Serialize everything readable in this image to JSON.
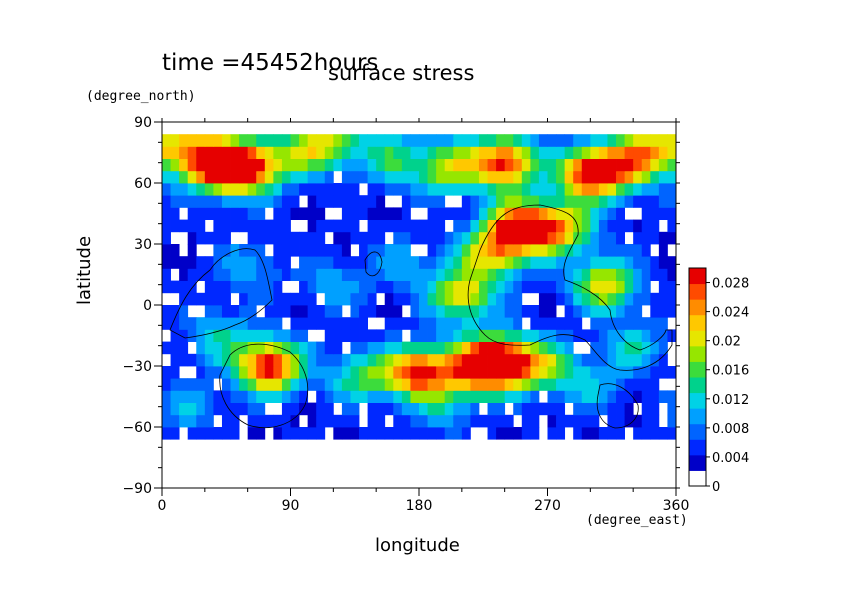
{
  "header": {
    "time_label": "time =45452hours"
  },
  "chart_data": {
    "type": "heatmap",
    "title": "surface stress",
    "xlabel": "longitude",
    "ylabel": "latitude",
    "x_unit": "(degree_east)",
    "y_unit": "(degree_north)",
    "xlim": [
      0,
      360
    ],
    "ylim": [
      -90,
      90
    ],
    "x_ticks": [
      0,
      90,
      180,
      270,
      360
    ],
    "y_ticks": [
      -90,
      -60,
      -30,
      0,
      30,
      60,
      90
    ],
    "colorbar": {
      "min": 0,
      "max": 0.03,
      "tick_labels": [
        "0",
        "0.004",
        "0.008",
        "0.012",
        "0.016",
        "0.02",
        "0.024",
        "0.028"
      ],
      "tick_values": [
        0,
        0.004,
        0.008,
        0.012,
        0.016,
        0.02,
        0.024,
        0.028
      ],
      "colors": [
        "#ffffff",
        "#0000c8",
        "#0028ff",
        "#0064ff",
        "#00a0ff",
        "#00d2e6",
        "#00d28c",
        "#3cdc3c",
        "#96e600",
        "#e6e600",
        "#ffc800",
        "#ff8c00",
        "#ff4b00",
        "#e60000"
      ]
    },
    "field": [
      {
        "lon": 35,
        "lat": 68,
        "v": 0.02
      },
      {
        "lon": 60,
        "lat": 68,
        "v": 0.028
      },
      {
        "lon": 100,
        "lat": 75,
        "v": 0.012
      },
      {
        "lon": 20,
        "lat": 78,
        "v": 0.014
      },
      {
        "lon": 160,
        "lat": 72,
        "v": 0.01
      },
      {
        "lon": 200,
        "lat": 68,
        "v": 0.016
      },
      {
        "lon": 240,
        "lat": 70,
        "v": 0.026
      },
      {
        "lon": 300,
        "lat": 65,
        "v": 0.028
      },
      {
        "lon": 330,
        "lat": 70,
        "v": 0.018
      },
      {
        "lon": 350,
        "lat": 80,
        "v": 0.012
      },
      {
        "lon": 120,
        "lat": 82,
        "v": 0.012
      },
      {
        "lon": 250,
        "lat": 38,
        "v": 0.028
      },
      {
        "lon": 280,
        "lat": 38,
        "v": 0.018
      },
      {
        "lon": 230,
        "lat": 25,
        "v": 0.016
      },
      {
        "lon": 210,
        "lat": 5,
        "v": 0.018
      },
      {
        "lon": 310,
        "lat": 10,
        "v": 0.018
      },
      {
        "lon": 75,
        "lat": -30,
        "v": 0.028
      },
      {
        "lon": 180,
        "lat": -33,
        "v": 0.026
      },
      {
        "lon": 220,
        "lat": -30,
        "v": 0.022
      },
      {
        "lon": 240,
        "lat": -28,
        "v": 0.026
      },
      {
        "lon": 140,
        "lat": -35,
        "v": 0.012
      },
      {
        "lon": 270,
        "lat": -30,
        "v": 0.012
      },
      {
        "lon": 40,
        "lat": -15,
        "v": 0.008
      },
      {
        "lon": 120,
        "lat": 10,
        "v": 0.006
      },
      {
        "lon": 170,
        "lat": 20,
        "v": 0.006
      },
      {
        "lon": 330,
        "lat": -20,
        "v": 0.008
      },
      {
        "lon": 20,
        "lat": -50,
        "v": 0.006
      },
      {
        "lon": 200,
        "lat": -50,
        "v": 0.006
      },
      {
        "lon": 60,
        "lat": 20,
        "v": 0.006
      },
      {
        "lon": 300,
        "lat": -40,
        "v": 0.006
      }
    ]
  }
}
